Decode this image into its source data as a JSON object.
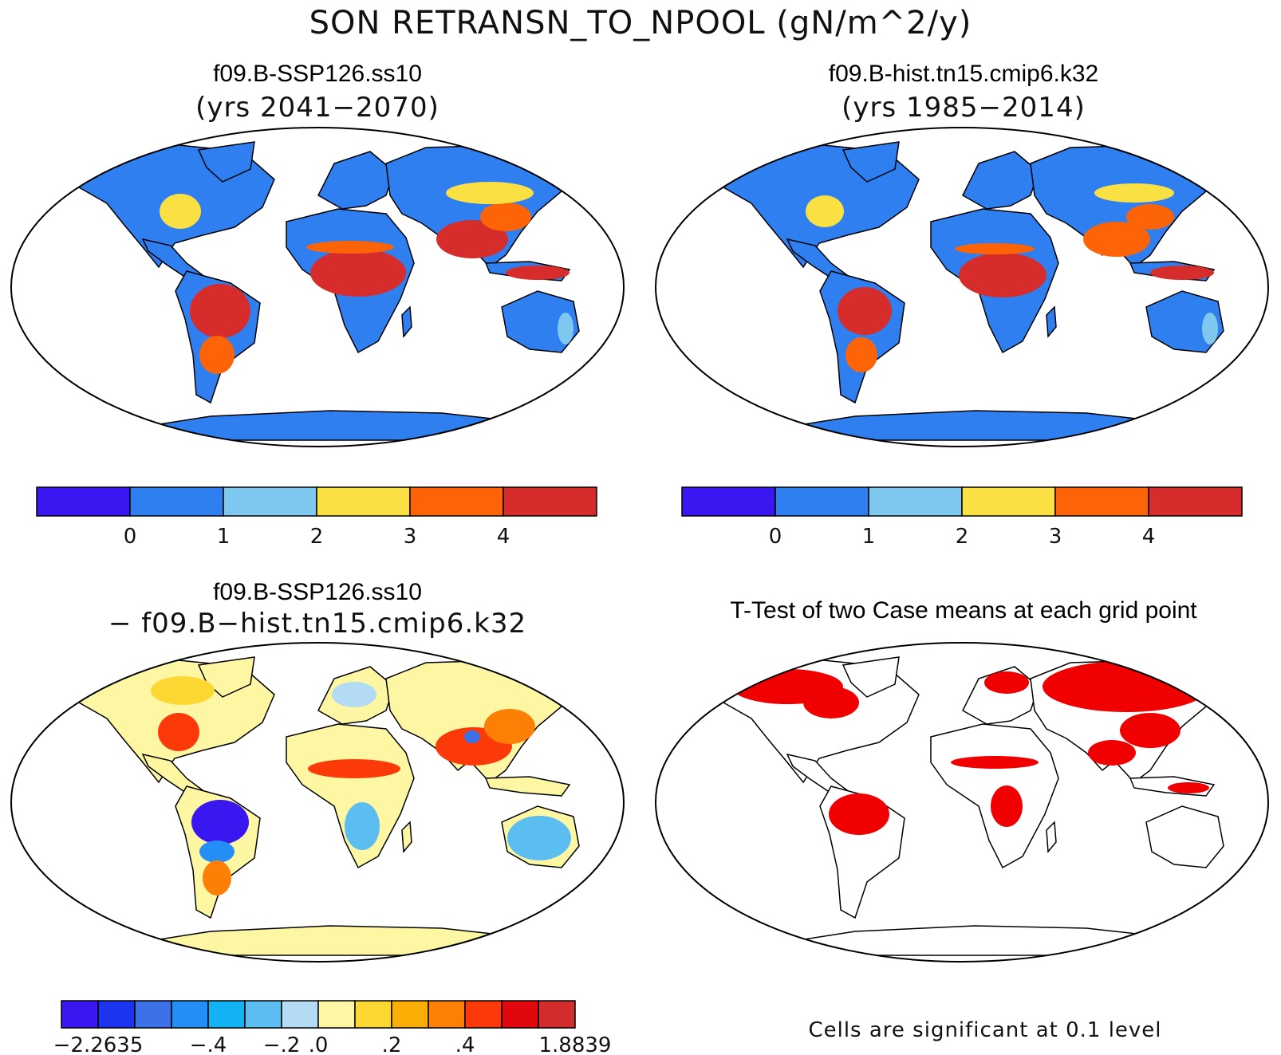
{
  "main_title": "SON RETRANSN_TO_NPOOL (gN/m^2/y)",
  "panels": {
    "top_left": {
      "title": "f09.B-SSP126.ss10",
      "subtitle": "(yrs 2041−2070)"
    },
    "top_right": {
      "title": "f09.B-hist.tn15.cmip6.k32",
      "subtitle": "(yrs 1985−2014)"
    },
    "bottom_left": {
      "title": "f09.B-SSP126.ss10",
      "subtitle": "− f09.B−hist.tn15.cmip6.k32"
    },
    "bottom_right": {
      "title": "T-Test of two Case means at each grid point",
      "note": "Cells are significant at 0.1 level"
    }
  },
  "colorbar_top": {
    "colors": [
      "#3a16f0",
      "#2f7ff0",
      "#7ec8f0",
      "#fbe043",
      "#fd6407",
      "#d62d2c"
    ],
    "ticks": [
      "0",
      "1",
      "2",
      "3",
      "4"
    ]
  },
  "colorbar_diff": {
    "colors": [
      "#3a16f0",
      "#1a34f0",
      "#3c71e8",
      "#238ef5",
      "#12b2f5",
      "#5cbdf0",
      "#b3dcf4",
      "#fdf7a4",
      "#fdd833",
      "#fdae06",
      "#fd7f06",
      "#fc3a09",
      "#e0080c",
      "#d22c2c"
    ],
    "ticks": [
      "−2.2635",
      "−.4",
      "−.2",
      ".0",
      ".2",
      ".4",
      "1.8839"
    ]
  },
  "significance_color": "#f00000"
}
